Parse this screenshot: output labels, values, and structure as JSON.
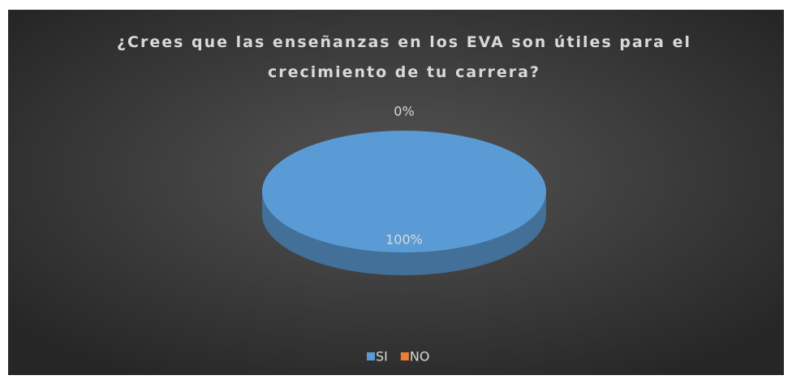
{
  "chart_data": {
    "type": "pie",
    "title": "¿Crees que las enseñanzas en los EVA son útiles para el crecimiento de tu carrera?",
    "categories": [
      "SI",
      "NO"
    ],
    "values": [
      100,
      0
    ],
    "value_labels": [
      "100%",
      "0%"
    ],
    "colors": [
      "#5b9bd5",
      "#ed7d31"
    ],
    "legend": "bottom"
  }
}
